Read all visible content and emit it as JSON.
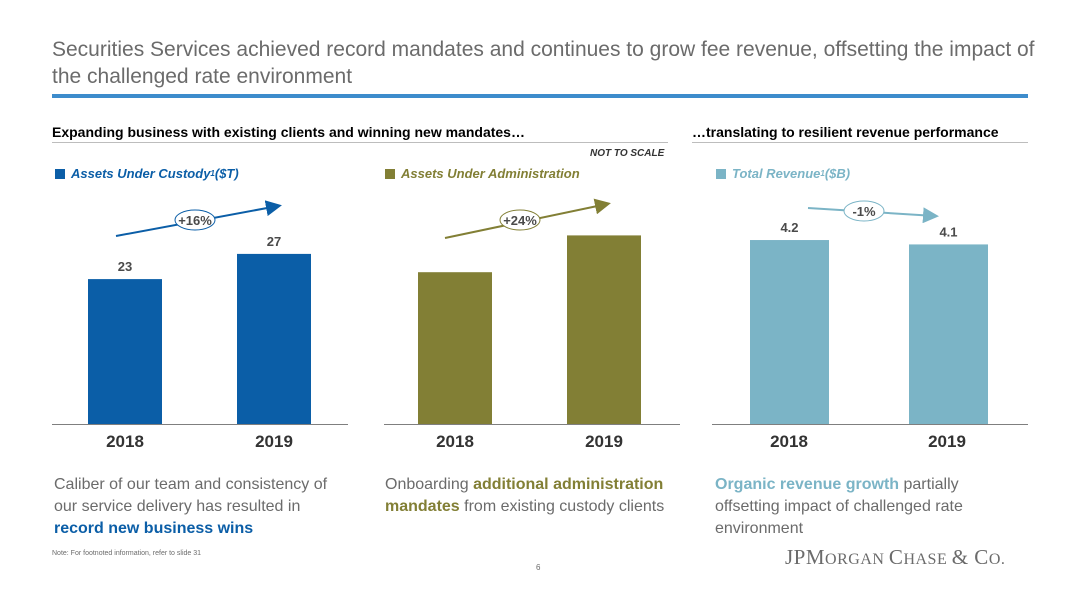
{
  "title": "Securities Services achieved record mandates and continues to grow fee revenue, offsetting the impact of the challenged rate environment",
  "left_header": "Expanding business with existing clients and winning new mandates…",
  "right_header": "…translating to resilient revenue performance",
  "not_to_scale": "NOT TO SCALE",
  "colors": {
    "custody": "#0b5ea7",
    "admin": "#827f35",
    "revenue": "#7bb4c6",
    "title_rule": "#3d8ccc"
  },
  "legends": {
    "custody": {
      "label": "Assets Under Custody",
      "sup": "1",
      "unit": " ($T)"
    },
    "admin": {
      "label": "Assets Under Administration"
    },
    "revenue": {
      "label": "Total Revenue",
      "sup": "1",
      "unit": " ($B)"
    }
  },
  "chart_data": [
    {
      "type": "bar",
      "name": "custody",
      "categories": [
        "2018",
        "2019"
      ],
      "values": [
        23,
        27
      ],
      "labels": [
        "23",
        "27"
      ],
      "growth": "+16%",
      "ylabel": "Assets Under Custody ($T)"
    },
    {
      "type": "bar",
      "name": "admin",
      "categories": [
        "2018",
        "2019"
      ],
      "values": [
        16.5,
        20.5
      ],
      "labels": [
        "",
        ""
      ],
      "growth": "+24%",
      "ylabel": "Assets Under Administration",
      "note": "NOT TO SCALE"
    },
    {
      "type": "bar",
      "name": "revenue",
      "categories": [
        "2018",
        "2019"
      ],
      "values": [
        4.2,
        4.1
      ],
      "labels": [
        "4.2",
        "4.1"
      ],
      "growth": "-1%",
      "ylabel": "Total Revenue ($B)"
    }
  ],
  "descriptions": {
    "custody": {
      "text1": "Caliber of our team and consistency of our service delivery has resulted in ",
      "highlight": "record new business wins",
      "text2": ""
    },
    "admin": {
      "text1": "Onboarding ",
      "highlight": "additional administration mandates",
      "text2": " from existing custody clients"
    },
    "revenue": {
      "text1": "",
      "highlight": "Organic revenue growth",
      "text2": " partially offsetting impact of challenged rate environment"
    }
  },
  "footnote": "Note: For footnoted information, refer to slide 31",
  "page_number": "6",
  "logo": {
    "p1": "JPM",
    "p2": "ORGAN ",
    "p3": "C",
    "p4": "HASE ",
    "p5": "& C",
    "p6": "O."
  }
}
